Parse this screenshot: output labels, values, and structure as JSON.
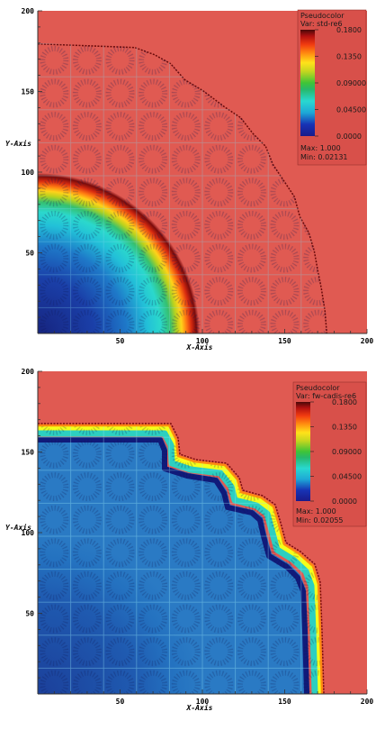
{
  "colors": {
    "background": "#e05a52",
    "legend_box": "#d8504a"
  },
  "chart_data": [
    {
      "type": "heatmap",
      "id": "top",
      "xlabel": "X-Axis",
      "ylabel": "Y-Axis",
      "xlim": [
        0,
        200
      ],
      "ylim": [
        0,
        200
      ],
      "x_ticks": [
        "50",
        "100",
        "150",
        "200"
      ],
      "y_ticks": [
        "50",
        "100",
        "150",
        "200"
      ],
      "colorscale": [
        {
          "v": 0.0,
          "c": "#1a1a8a"
        },
        {
          "v": 0.02,
          "c": "#1733b5"
        },
        {
          "v": 0.04,
          "c": "#1ea8d6"
        },
        {
          "v": 0.06,
          "c": "#29d8d0"
        },
        {
          "v": 0.08,
          "c": "#27b86a"
        },
        {
          "v": 0.09,
          "c": "#3fc437"
        },
        {
          "v": 0.11,
          "c": "#c6d61f"
        },
        {
          "v": 0.125,
          "c": "#ffe21a"
        },
        {
          "v": 0.14,
          "c": "#ff8a10"
        },
        {
          "v": 0.155,
          "c": "#f23c10"
        },
        {
          "v": 0.17,
          "c": "#b21010"
        },
        {
          "v": 0.18,
          "c": "#4a0808"
        }
      ],
      "legend": {
        "title": "Pseudocolor",
        "var": "Var: std-re6",
        "ticks": [
          "0.1800",
          "0.1350",
          "0.09000",
          "0.04500",
          "0.0000"
        ],
        "max": "Max: 1.000",
        "min": "Min: 0.02131"
      }
    },
    {
      "type": "heatmap",
      "id": "bottom",
      "xlabel": "X-Axis",
      "ylabel": "Y-Axis",
      "xlim": [
        0,
        200
      ],
      "ylim": [
        0,
        200
      ],
      "x_ticks": [
        "50",
        "100",
        "150",
        "200"
      ],
      "y_ticks": [
        "50",
        "100",
        "150",
        "200"
      ],
      "colorscale": [
        {
          "v": 0.0,
          "c": "#1a1a8a"
        },
        {
          "v": 0.02,
          "c": "#1733b5"
        },
        {
          "v": 0.04,
          "c": "#1ea8d6"
        },
        {
          "v": 0.06,
          "c": "#29d8d0"
        },
        {
          "v": 0.08,
          "c": "#27b86a"
        },
        {
          "v": 0.09,
          "c": "#3fc437"
        },
        {
          "v": 0.11,
          "c": "#c6d61f"
        },
        {
          "v": 0.125,
          "c": "#ffe21a"
        },
        {
          "v": 0.14,
          "c": "#ff8a10"
        },
        {
          "v": 0.155,
          "c": "#f23c10"
        },
        {
          "v": 0.17,
          "c": "#b21010"
        },
        {
          "v": 0.18,
          "c": "#4a0808"
        }
      ],
      "legend": {
        "title": "Pseudocolor",
        "var": "Var: fw-cadis-re6",
        "ticks": [
          "0.1800",
          "0.1350",
          "0.09000",
          "0.04500",
          "0.0000"
        ],
        "max": "Max: 1.000",
        "min": "Min: 0.02055"
      }
    }
  ]
}
